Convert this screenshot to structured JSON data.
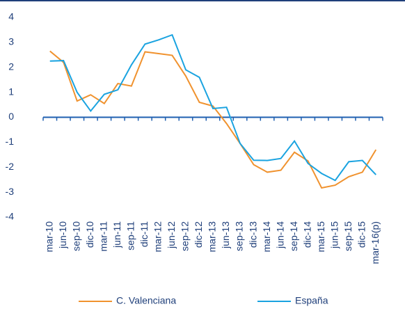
{
  "chart_data": {
    "type": "line",
    "categories": [
      "mar-10",
      "jun-10",
      "sep-10",
      "dic-10",
      "mar-11",
      "jun-11",
      "sep-11",
      "dic-11",
      "mar-12",
      "jun-12",
      "sep-12",
      "dic-12",
      "mar-13",
      "jun-13",
      "sep-13",
      "dic-13",
      "mar-14",
      "jun-14",
      "sep-14",
      "dic-14",
      "mar-15",
      "jun-15",
      "sep-15",
      "dic-15",
      "mar-16(p)"
    ],
    "series": [
      {
        "name": "C. Valenciana",
        "color": "#f0922e",
        "values": [
          2.65,
          2.2,
          0.65,
          0.9,
          0.55,
          1.35,
          1.25,
          2.62,
          2.55,
          2.48,
          1.65,
          0.6,
          0.45,
          -0.25,
          -1.05,
          -1.9,
          -2.2,
          -2.12,
          -1.4,
          -1.75,
          -2.83,
          -2.72,
          -2.38,
          -2.2,
          -1.3
        ]
      },
      {
        "name": "España",
        "color": "#1aa3e0",
        "values": [
          2.25,
          2.27,
          1.0,
          0.25,
          0.92,
          1.1,
          2.1,
          2.93,
          3.1,
          3.3,
          1.9,
          1.6,
          0.35,
          0.4,
          -1.05,
          -1.72,
          -1.73,
          -1.65,
          -0.95,
          -1.85,
          -2.25,
          -2.53,
          -1.78,
          -1.73,
          -2.3
        ]
      }
    ],
    "ylim": [
      -4,
      4
    ],
    "yticks": [
      -4,
      -3,
      -2,
      -1,
      0,
      1,
      2,
      3,
      4
    ],
    "grid": false,
    "legend": "bottom"
  }
}
